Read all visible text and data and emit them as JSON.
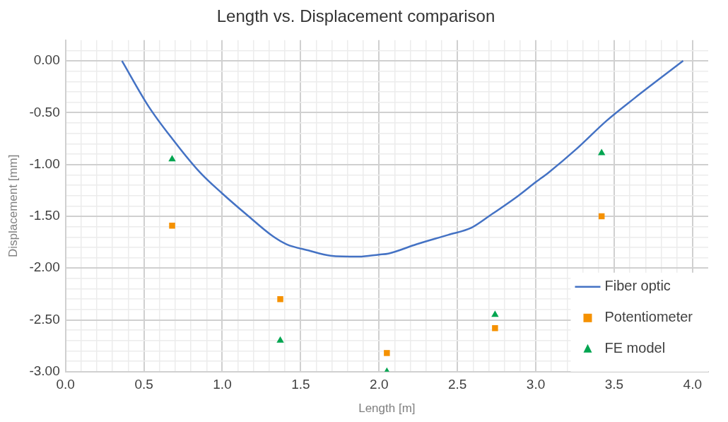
{
  "chart_data": {
    "type": "line",
    "title": "Length vs. Displacement comparison",
    "xlabel": "Length [m]",
    "ylabel": "Displacement [mm]",
    "series": [
      {
        "name": "Fiber optic",
        "marker": "none",
        "color": "#4472c4",
        "x": [
          0.36,
          0.53,
          0.68,
          0.86,
          1.0,
          1.16,
          1.32,
          1.41,
          1.55,
          1.69,
          1.87,
          2.0,
          2.06,
          2.24,
          2.44,
          2.59,
          2.71,
          2.89,
          3.0,
          3.08,
          3.26,
          3.45,
          3.63,
          3.94
        ],
        "values": [
          0,
          -0.44,
          -0.75,
          -1.08,
          -1.28,
          -1.49,
          -1.69,
          -1.77,
          -1.83,
          -1.88,
          -1.89,
          -1.87,
          -1.86,
          -1.77,
          -1.68,
          -1.61,
          -1.49,
          -1.3,
          -1.17,
          -1.08,
          -0.85,
          -0.58,
          -0.36,
          0
        ]
      },
      {
        "name": "Potentiometer",
        "type": "scatter",
        "marker": "square",
        "color": "#f59100",
        "x": [
          0.68,
          1.37,
          2.05,
          2.74,
          3.42
        ],
        "values": [
          -1.59,
          -2.3,
          -2.82,
          -2.58,
          -1.5
        ]
      },
      {
        "name": "FE model",
        "type": "scatter",
        "marker": "triangle",
        "color": "#00a550",
        "x": [
          0.68,
          1.37,
          2.05,
          2.74,
          3.42
        ],
        "values": [
          -0.95,
          -2.7,
          -3.0,
          -2.45,
          -0.89
        ]
      }
    ],
    "xlim": [
      0,
      4.1
    ],
    "xticks": [
      {
        "value": 0,
        "label": "0.0"
      },
      {
        "value": 0.1,
        "label": null
      },
      {
        "value": 0.2,
        "label": null
      },
      {
        "value": 0.3,
        "label": null
      },
      {
        "value": 0.4,
        "label": null
      },
      {
        "value": 0.5,
        "label": "0.5"
      },
      {
        "value": 0.6,
        "label": null
      },
      {
        "value": 0.7,
        "label": null
      },
      {
        "value": 0.8,
        "label": null
      },
      {
        "value": 0.9,
        "label": null
      },
      {
        "value": 1,
        "label": "1.0"
      },
      {
        "value": 1.1,
        "label": null
      },
      {
        "value": 1.2,
        "label": null
      },
      {
        "value": 1.3,
        "label": null
      },
      {
        "value": 1.4,
        "label": null
      },
      {
        "value": 1.5,
        "label": "1.5"
      },
      {
        "value": 1.6,
        "label": null
      },
      {
        "value": 1.7,
        "label": null
      },
      {
        "value": 1.8,
        "label": null
      },
      {
        "value": 1.9,
        "label": null
      },
      {
        "value": 2,
        "label": "2.0"
      },
      {
        "value": 2.1,
        "label": null
      },
      {
        "value": 2.2,
        "label": null
      },
      {
        "value": 2.3,
        "label": null
      },
      {
        "value": 2.4,
        "label": null
      },
      {
        "value": 2.5,
        "label": "2.5"
      },
      {
        "value": 2.6,
        "label": null
      },
      {
        "value": 2.7,
        "label": null
      },
      {
        "value": 2.8,
        "label": null
      },
      {
        "value": 2.9,
        "label": null
      },
      {
        "value": 3,
        "label": "3.0"
      },
      {
        "value": 3.1,
        "label": null
      },
      {
        "value": 3.2,
        "label": null
      },
      {
        "value": 3.3,
        "label": null
      },
      {
        "value": 3.4,
        "label": null
      },
      {
        "value": 3.5,
        "label": "3.5"
      },
      {
        "value": 3.6,
        "label": null
      },
      {
        "value": 3.7,
        "label": null
      },
      {
        "value": 3.8,
        "label": null
      },
      {
        "value": 3.9,
        "label": null
      },
      {
        "value": 4,
        "label": "4.0"
      }
    ],
    "ylim": [
      -3,
      0.2
    ],
    "yticks": [
      {
        "value": -3,
        "label": "-3.00"
      },
      {
        "value": -2.9,
        "label": null
      },
      {
        "value": -2.8,
        "label": null
      },
      {
        "value": -2.7,
        "label": null
      },
      {
        "value": -2.6,
        "label": null
      },
      {
        "value": -2.5,
        "label": "-2.50"
      },
      {
        "value": -2.4,
        "label": null
      },
      {
        "value": -2.3,
        "label": null
      },
      {
        "value": -2.2,
        "label": null
      },
      {
        "value": -2.1,
        "label": null
      },
      {
        "value": -2,
        "label": "-2.00"
      },
      {
        "value": -1.9,
        "label": null
      },
      {
        "value": -1.8,
        "label": null
      },
      {
        "value": -1.7,
        "label": null
      },
      {
        "value": -1.6,
        "label": null
      },
      {
        "value": -1.5,
        "label": "-1.50"
      },
      {
        "value": -1.4,
        "label": null
      },
      {
        "value": -1.3,
        "label": null
      },
      {
        "value": -1.2,
        "label": null
      },
      {
        "value": -1.1,
        "label": null
      },
      {
        "value": -1,
        "label": "-1.00"
      },
      {
        "value": -0.9,
        "label": null
      },
      {
        "value": -0.8,
        "label": null
      },
      {
        "value": -0.7,
        "label": null
      },
      {
        "value": -0.6,
        "label": null
      },
      {
        "value": -0.5,
        "label": "-0.50"
      },
      {
        "value": -0.4,
        "label": null
      },
      {
        "value": -0.3,
        "label": null
      },
      {
        "value": -0.2,
        "label": null
      },
      {
        "value": -0.1,
        "label": null
      },
      {
        "value": 0,
        "label": "0.00"
      },
      {
        "value": 0.1,
        "label": null
      }
    ],
    "grid": true,
    "legend": "bottom right"
  }
}
